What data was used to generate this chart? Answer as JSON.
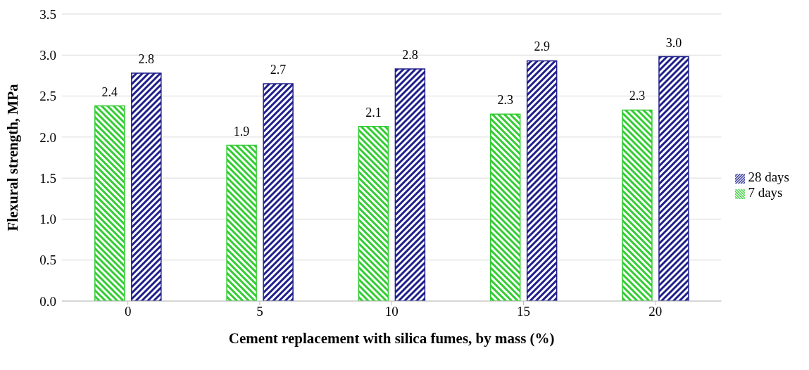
{
  "chart_data": {
    "type": "bar",
    "xlabel": "Cement replacement with silica fumes, by mass (%)",
    "ylabel": "Flexural strength, MPa",
    "categories": [
      "0",
      "5",
      "10",
      "15",
      "20"
    ],
    "series": [
      {
        "name": "7 days",
        "color": "#33cc33",
        "values": [
          2.38,
          1.9,
          2.13,
          2.28,
          2.33
        ],
        "value_labels": [
          "2.4",
          "1.9",
          "2.1",
          "2.3",
          "2.3"
        ]
      },
      {
        "name": "28 days",
        "color": "#1f1f8c",
        "values": [
          2.78,
          2.65,
          2.83,
          2.93,
          2.98
        ],
        "value_labels": [
          "2.8",
          "2.7",
          "2.8",
          "2.9",
          "3.0"
        ]
      }
    ],
    "ylim": [
      0,
      3.5
    ],
    "yticks": [
      {
        "value": 0,
        "label": "0.0"
      },
      {
        "value": 0.5,
        "label": "0.5"
      },
      {
        "value": 1,
        "label": "1.0"
      },
      {
        "value": 1.5,
        "label": "1.5"
      },
      {
        "value": 2,
        "label": "2.0"
      },
      {
        "value": 2.5,
        "label": "2.5"
      },
      {
        "value": 3,
        "label": "3.0"
      },
      {
        "value": 3.5,
        "label": "3.5"
      }
    ],
    "grid": "y",
    "legend": "right"
  }
}
